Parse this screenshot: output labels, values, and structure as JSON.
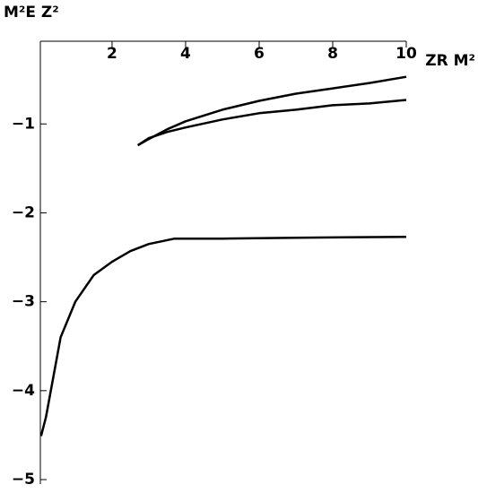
{
  "chart_data": {
    "type": "line",
    "x_label": "ZR M²",
    "y_label": "M²E Z²",
    "xlim": [
      0.05,
      10
    ],
    "ylim": [
      -5.05,
      -0.07
    ],
    "xticks": [
      2,
      4,
      6,
      8,
      10
    ],
    "yticks": [
      {
        "value": -1,
        "label": "−1"
      },
      {
        "value": -2,
        "label": "−2"
      },
      {
        "value": -3,
        "label": "−3"
      },
      {
        "value": -4,
        "label": "−4"
      },
      {
        "value": -5,
        "label": "−5"
      }
    ],
    "series": [
      {
        "color": "#000000",
        "x": [
          2.7,
          3,
          3.5,
          4,
          5,
          6,
          7,
          8,
          9,
          10
        ],
        "values": [
          -1.24,
          -1.17,
          -1.06,
          -0.97,
          -0.84,
          -0.74,
          -0.66,
          -0.6,
          -0.54,
          -0.47
        ]
      },
      {
        "color": "#000000",
        "x": [
          2.7,
          3,
          3.5,
          4,
          5,
          6,
          7,
          8,
          9,
          10
        ],
        "values": [
          -1.24,
          -1.16,
          -1.09,
          -1.04,
          -0.95,
          -0.88,
          -0.84,
          -0.79,
          -0.77,
          -0.73
        ]
      },
      {
        "color": "#000000",
        "x": [
          0.07,
          0.2,
          0.4,
          0.6,
          1,
          1.5,
          2,
          2.5,
          3,
          3.7,
          5,
          7,
          10
        ],
        "values": [
          -4.51,
          -4.3,
          -3.85,
          -3.4,
          -3.0,
          -2.7,
          -2.55,
          -2.43,
          -2.35,
          -2.29,
          -2.29,
          -2.28,
          -2.27
        ]
      }
    ]
  }
}
